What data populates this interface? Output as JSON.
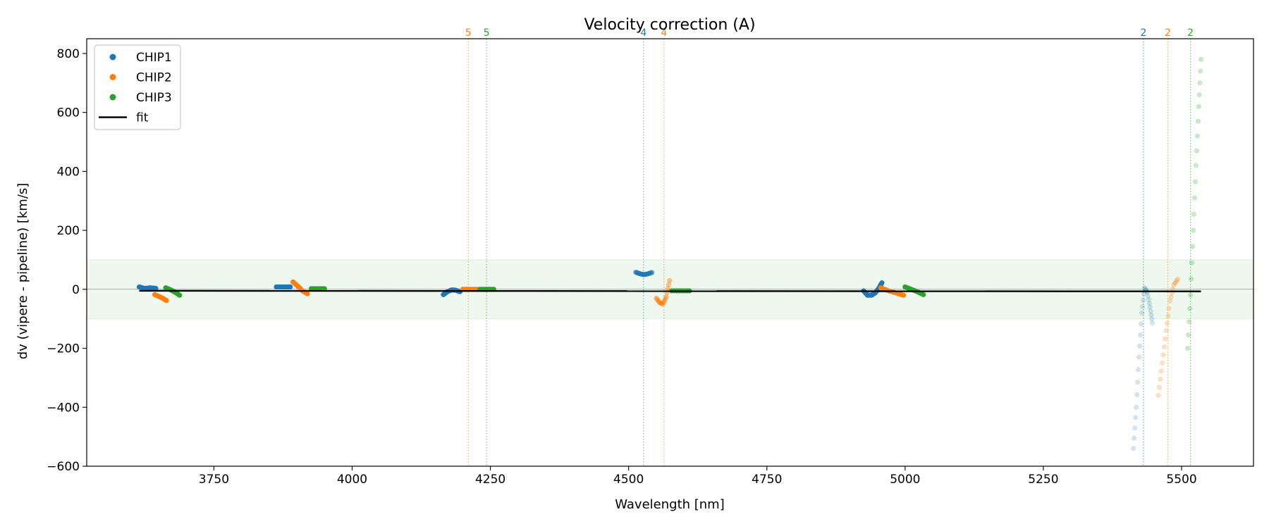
{
  "chart_data": {
    "type": "scatter",
    "title": "Velocity correction (A)",
    "xlabel": "Wavelength [nm]",
    "ylabel": "dv (vipere - pipeline) [km/s]",
    "xlim": [
      3520,
      5630
    ],
    "ylim": [
      -600,
      850
    ],
    "x_ticks": [
      3750,
      4000,
      4250,
      4500,
      4750,
      5000,
      5250,
      5500
    ],
    "x_tick_labels": [
      "3750",
      "4000",
      "4250",
      "4500",
      "4750",
      "5000",
      "5250",
      "5500"
    ],
    "y_ticks": [
      -600,
      -400,
      -200,
      0,
      200,
      400,
      600,
      800
    ],
    "y_tick_labels": [
      "−600",
      "−400",
      "−200",
      "0",
      "200",
      "400",
      "600",
      "800"
    ],
    "band": [
      -100,
      100
    ],
    "colors": {
      "CHIP1": "#1f77b4",
      "CHIP2": "#ff7f0e",
      "CHIP3": "#2ca02c",
      "fit": "#000000",
      "band": "#2ca02c"
    },
    "legend": {
      "position": "top-left",
      "entries": [
        {
          "label": "CHIP1",
          "marker": "dot",
          "color": "#1f77b4"
        },
        {
          "label": "CHIP2",
          "marker": "dot",
          "color": "#ff7f0e"
        },
        {
          "label": "CHIP3",
          "marker": "dot",
          "color": "#2ca02c"
        },
        {
          "label": "fit",
          "marker": "line",
          "color": "#000000"
        }
      ]
    },
    "order_markers": [
      {
        "x": 4210,
        "label": "5",
        "chip": "CHIP2"
      },
      {
        "x": 4243,
        "label": "5",
        "chip": "CHIP3"
      },
      {
        "x": 4527,
        "label": "4",
        "chip": "CHIP1"
      },
      {
        "x": 4564,
        "label": "4",
        "chip": "CHIP2"
      },
      {
        "x": 5431,
        "label": "2",
        "chip": "CHIP1"
      },
      {
        "x": 5475,
        "label": "2",
        "chip": "CHIP2"
      },
      {
        "x": 5516,
        "label": "2",
        "chip": "CHIP3"
      }
    ],
    "fit": {
      "x": [
        3615,
        5535
      ],
      "y": [
        -5,
        -7
      ]
    },
    "segments": [
      {
        "chip": "CHIP1",
        "alpha": 1.0,
        "x": [
          3615,
          3625,
          3635,
          3645
        ],
        "y": [
          8,
          3,
          5,
          3
        ]
      },
      {
        "chip": "CHIP2",
        "alpha": 1.0,
        "x": [
          3643,
          3650,
          3657,
          3664
        ],
        "y": [
          -18,
          -24,
          -30,
          -38
        ]
      },
      {
        "chip": "CHIP3",
        "alpha": 1.0,
        "x": [
          3663,
          3672,
          3680,
          3688
        ],
        "y": [
          5,
          -2,
          -10,
          -20
        ]
      },
      {
        "chip": "CHIP1",
        "alpha": 1.0,
        "x": [
          3863,
          3875,
          3888
        ],
        "y": [
          8,
          8,
          8
        ]
      },
      {
        "chip": "CHIP2",
        "alpha": 1.0,
        "x": [
          3893,
          3902,
          3910,
          3919
        ],
        "y": [
          25,
          10,
          -5,
          -15
        ]
      },
      {
        "chip": "CHIP3",
        "alpha": 1.0,
        "x": [
          3926,
          3938,
          3950
        ],
        "y": [
          2,
          2,
          2
        ]
      },
      {
        "chip": "CHIP1",
        "alpha": 1.0,
        "x": [
          4165,
          4172,
          4180,
          4187,
          4195
        ],
        "y": [
          -18,
          -8,
          -2,
          -3,
          -8
        ]
      },
      {
        "chip": "CHIP2",
        "alpha": 1.0,
        "x": [
          4200,
          4213,
          4226
        ],
        "y": [
          0,
          0,
          0
        ]
      },
      {
        "chip": "CHIP3",
        "alpha": 1.0,
        "x": [
          4231,
          4243,
          4256
        ],
        "y": [
          0,
          0,
          0
        ]
      },
      {
        "chip": "CHIP1",
        "alpha": 0.65,
        "x": [
          4513,
          4520,
          4527,
          4534,
          4542
        ],
        "y": [
          58,
          53,
          50,
          52,
          57
        ]
      },
      {
        "chip": "CHIP2",
        "alpha": 0.45,
        "x": [
          4550,
          4556,
          4562,
          4568,
          4574
        ],
        "y": [
          -30,
          -45,
          -50,
          -25,
          30
        ]
      },
      {
        "chip": "CHIP3",
        "alpha": 1.0,
        "x": [
          4578,
          4595,
          4610
        ],
        "y": [
          -5,
          -5,
          -5
        ]
      },
      {
        "chip": "CHIP1",
        "alpha": 1.0,
        "x": [
          4925,
          4932,
          4939,
          4946,
          4953,
          4958
        ],
        "y": [
          -5,
          -20,
          -20,
          -12,
          5,
          22
        ]
      },
      {
        "chip": "CHIP2",
        "alpha": 1.0,
        "x": [
          4956,
          4970,
          4983,
          4997
        ],
        "y": [
          5,
          -5,
          -12,
          -20
        ]
      },
      {
        "chip": "CHIP3",
        "alpha": 1.0,
        "x": [
          5000,
          5011,
          5022,
          5033
        ],
        "y": [
          8,
          0,
          -8,
          -18
        ]
      },
      {
        "chip": "CHIP1",
        "alpha": 0.2,
        "x": [
          5413,
          5418,
          5423,
          5428,
          5433,
          5438,
          5443,
          5447
        ],
        "y": [
          -540,
          -400,
          -230,
          -80,
          5,
          -10,
          -60,
          -115
        ]
      },
      {
        "chip": "CHIP2",
        "alpha": 0.25,
        "x": [
          5458,
          5465,
          5472,
          5479,
          5486,
          5493
        ],
        "y": [
          -360,
          -250,
          -140,
          -40,
          15,
          35
        ]
      },
      {
        "chip": "CHIP3",
        "alpha": 0.25,
        "x": [
          5511,
          5516,
          5521,
          5526,
          5531,
          5535
        ],
        "y": [
          -200,
          -20,
          200,
          420,
          620,
          780
        ]
      }
    ]
  }
}
